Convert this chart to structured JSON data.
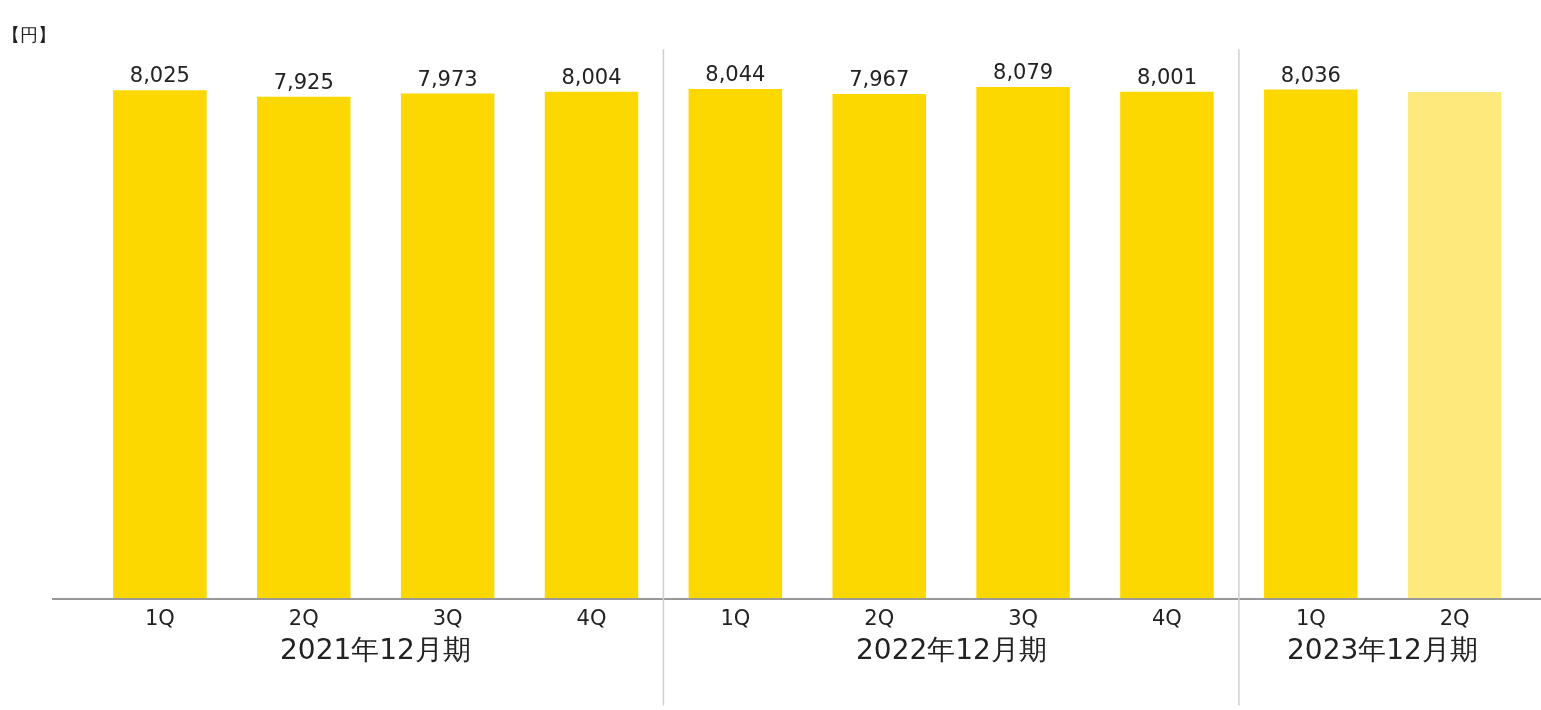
{
  "chart_data": {
    "type": "bar",
    "ylabel": "【円】",
    "categories": [
      "1Q",
      "2Q",
      "3Q",
      "4Q",
      "1Q",
      "2Q",
      "3Q",
      "4Q",
      "1Q",
      "2Q"
    ],
    "values": [
      8025,
      7925,
      7973,
      8004,
      8044,
      7967,
      8079,
      8001,
      8036,
      8000
    ],
    "value_labels": [
      "8,025",
      "7,925",
      "7,973",
      "8,004",
      "8,044",
      "7,967",
      "8,079",
      "8,001",
      "8,036",
      null
    ],
    "colors": [
      "#fdd800",
      "#fdd800",
      "#fdd800",
      "#fdd800",
      "#fdd800",
      "#fdd800",
      "#fdd800",
      "#fdd800",
      "#fdd800",
      "#fee97c"
    ],
    "annotations": [
      "2021年12月期",
      "2022年12月期",
      "2023年12月期"
    ],
    "grid": false
  }
}
